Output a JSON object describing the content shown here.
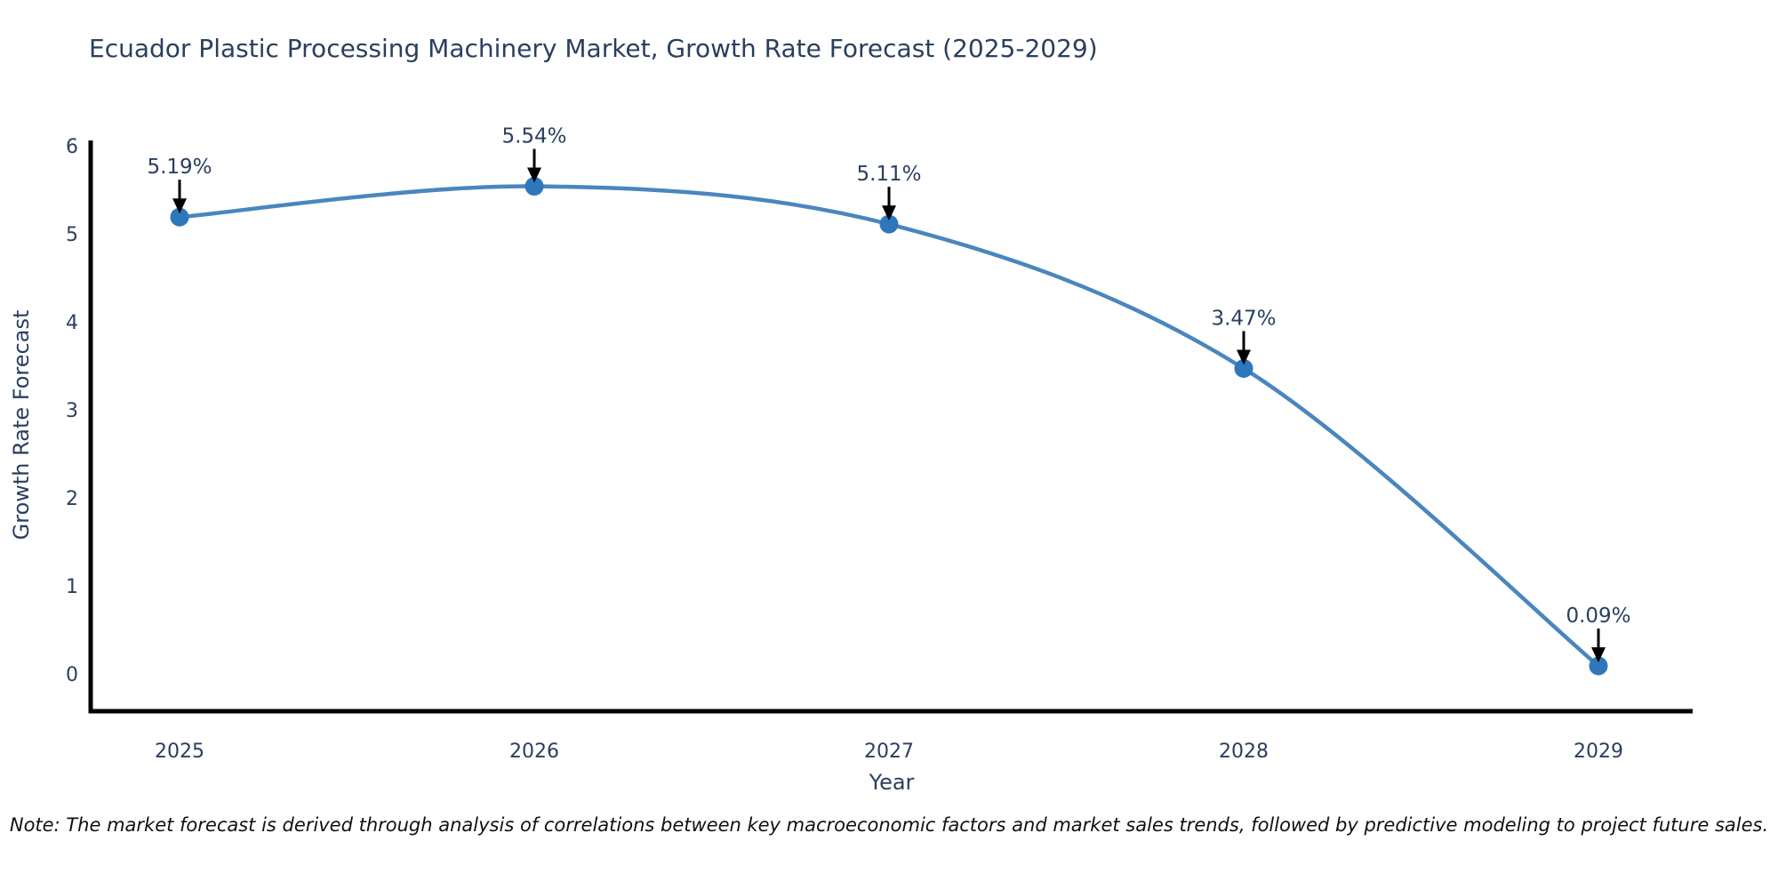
{
  "chart_data": {
    "type": "line",
    "title": "Ecuador Plastic Processing Machinery Market, Growth Rate Forecast (2025-2029)",
    "xlabel": "Year",
    "ylabel": "Growth Rate Forecast",
    "categories": [
      "2025",
      "2026",
      "2027",
      "2028",
      "2029"
    ],
    "values": [
      5.19,
      5.54,
      5.11,
      3.47,
      0.09
    ],
    "point_labels": [
      "5.19%",
      "5.54%",
      "5.11%",
      "3.47%",
      "0.09%"
    ],
    "ylim": [
      0,
      6
    ],
    "yticks": [
      0,
      1,
      2,
      3,
      4,
      5,
      6
    ],
    "grid": false,
    "legend_position": "none",
    "line_shape": "spline",
    "colors": {
      "line": "#4a86be",
      "marker": "#2e77bb",
      "axis": "#000000",
      "tick_text": "#2a3f5f",
      "annotation_text": "#2a3f5f",
      "arrow": "#000000",
      "background": "#ffffff"
    }
  },
  "note": "Note: The market forecast is derived through analysis of correlations between key macroeconomic factors and market sales trends, followed by predictive modeling to project future sales."
}
